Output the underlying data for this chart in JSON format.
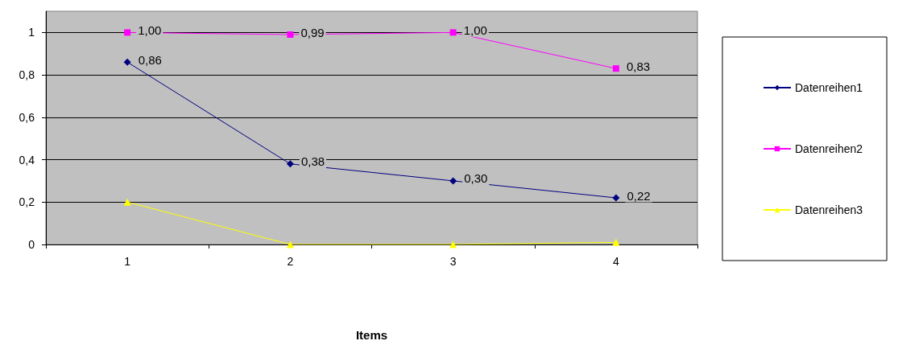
{
  "chart_data": {
    "type": "line",
    "xlabel": "Items",
    "categories": [
      "1",
      "2",
      "3",
      "4"
    ],
    "series": [
      {
        "name": "Datenreihen1",
        "color": "#000080",
        "marker": "diamond",
        "values": [
          0.86,
          0.38,
          0.3,
          0.22
        ],
        "value_labels": [
          "0,86",
          "0,38",
          "0,30",
          "0,22"
        ]
      },
      {
        "name": "Datenreihen2",
        "color": "#ff00ff",
        "marker": "square",
        "values": [
          1.0,
          0.99,
          1.0,
          0.83
        ],
        "value_labels": [
          "1,00",
          "0,99",
          "1,00",
          "0,83"
        ]
      },
      {
        "name": "Datenreihen3",
        "color": "#ffff00",
        "marker": "triangle",
        "values": [
          0.2,
          0,
          0,
          0.01
        ]
      }
    ],
    "ylim": [
      0,
      1.1
    ],
    "yticks": [
      0,
      {
        "value": 0.2,
        "label": "0,2"
      },
      {
        "value": 0.4,
        "label": "0,4"
      },
      {
        "value": 0.6,
        "label": "0,6"
      },
      {
        "value": 0.8,
        "label": "0,8"
      },
      1
    ],
    "grid": "y",
    "legend": "right"
  }
}
